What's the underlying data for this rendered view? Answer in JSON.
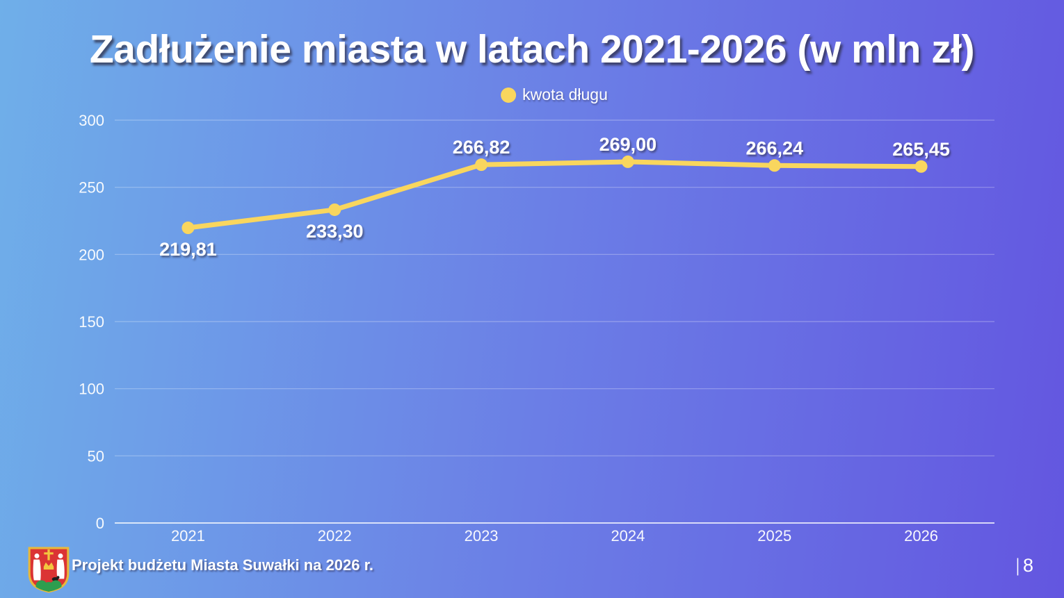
{
  "slide": {
    "title": "Zadłużenie miasta w latach 2021-2026 (w mln zł)",
    "footer": "Projekt budżetu Miasta Suwałki na 2026 r.",
    "page_separator": "|",
    "page_number": "8"
  },
  "legend": {
    "label": "kwota długu"
  },
  "colors": {
    "bg_left": "#6FAFE9",
    "bg_right": "#6356E0",
    "line": "#F9D65E",
    "marker": "#F9D65E",
    "grid": "rgba(255,255,255,0.30)",
    "baseline": "rgba(255,255,255,0.75)",
    "text": "#FFFFFF"
  },
  "chart_data": {
    "type": "line",
    "title": "Zadłużenie miasta w latach 2021-2026 (w mln zł)",
    "categories": [
      "2021",
      "2022",
      "2023",
      "2024",
      "2025",
      "2026"
    ],
    "series": [
      {
        "name": "kwota długu",
        "values": [
          219.81,
          233.3,
          266.82,
          269.0,
          266.24,
          265.45
        ],
        "value_labels": [
          "219,81",
          "233,30",
          "266,82",
          "269,00",
          "266,24",
          "265,45"
        ],
        "label_positions": [
          "below",
          "below",
          "above",
          "above",
          "above",
          "above"
        ]
      }
    ],
    "xlabel": "",
    "ylabel": "",
    "ylim": [
      0,
      300
    ],
    "y_ticks": [
      0,
      50,
      100,
      150,
      200,
      250,
      300
    ],
    "grid": true,
    "legend_position": "top"
  }
}
